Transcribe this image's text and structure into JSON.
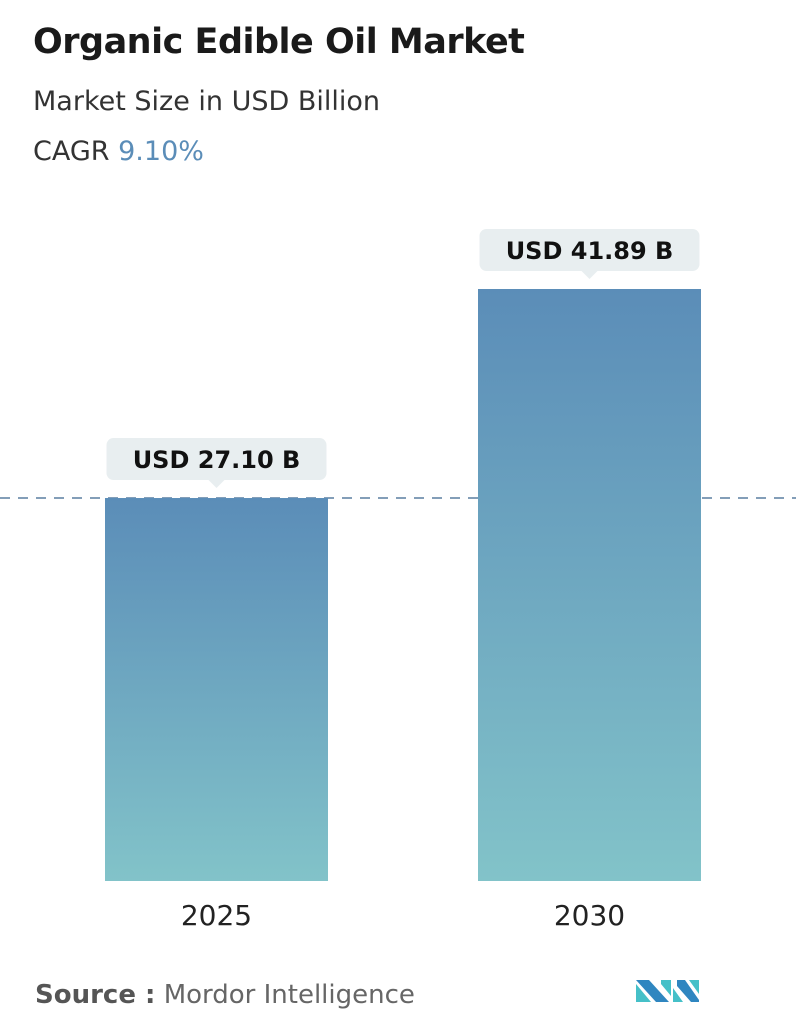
{
  "title": "Organic Edible Oil Market",
  "subtitle": "Market Size in USD Billion",
  "cagr_label": "CAGR",
  "cagr_value": "9.10%",
  "source_label": "Source :",
  "source_value": "Mordor Intelligence",
  "colors": {
    "bar_top": "#5b8db8",
    "bar_bottom": "#82c3c9",
    "cagr": "#5b8db8",
    "dashed_line": "#5a7fa0",
    "label_bg": "#e8eef0"
  },
  "chart_data": {
    "type": "bar",
    "categories": [
      "2025",
      "2030"
    ],
    "values": [
      27.1,
      41.89
    ],
    "data_labels": [
      "USD 27.10 B",
      "USD 41.89 B"
    ],
    "title": "Organic Edible Oil Market",
    "xlabel": "",
    "ylabel": "",
    "ylim": [
      0,
      41.89
    ],
    "grid": false,
    "reference_line": 27.1
  }
}
